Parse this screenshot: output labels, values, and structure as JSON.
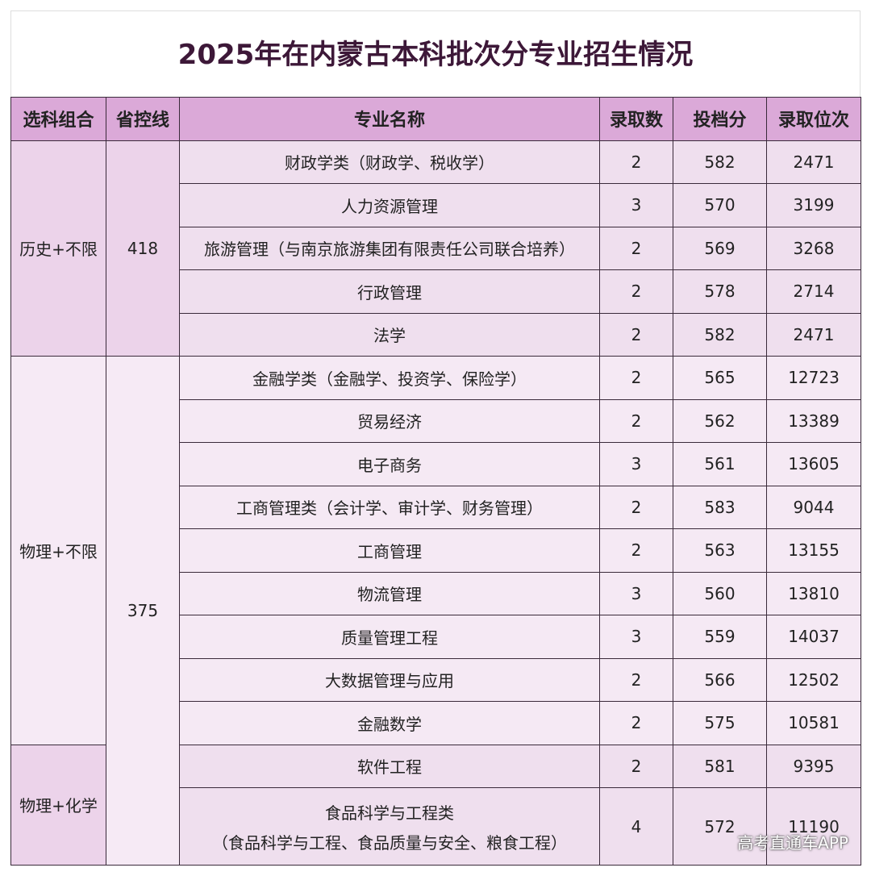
{
  "title": "2025年在内蒙古本科批次分专业招生情况",
  "table": {
    "headers": [
      "选科组合",
      "省控线",
      "专业名称",
      "录取数",
      "投档分",
      "录取位次"
    ],
    "sections": [
      {
        "control_line": 418,
        "groups": [
          {
            "subject": "历史+不限",
            "rows": [
              {
                "major": "财政学类（财政学、税收学）",
                "count": 2,
                "score": 582,
                "rank": 2471
              },
              {
                "major": "人力资源管理",
                "count": 3,
                "score": 570,
                "rank": 3199
              },
              {
                "major": "旅游管理（与南京旅游集团有限责任公司联合培养）",
                "count": 2,
                "score": 569,
                "rank": 3268
              },
              {
                "major": "行政管理",
                "count": 2,
                "score": 578,
                "rank": 2714
              },
              {
                "major": "法学",
                "count": 2,
                "score": 582,
                "rank": 2471
              }
            ]
          }
        ]
      },
      {
        "control_line": 375,
        "groups": [
          {
            "subject": "物理+不限",
            "rows": [
              {
                "major": "金融学类（金融学、投资学、保险学）",
                "count": 2,
                "score": 565,
                "rank": 12723
              },
              {
                "major": "贸易经济",
                "count": 2,
                "score": 562,
                "rank": 13389
              },
              {
                "major": "电子商务",
                "count": 3,
                "score": 561,
                "rank": 13605
              },
              {
                "major": "工商管理类（会计学、审计学、财务管理）",
                "count": 2,
                "score": 583,
                "rank": 9044
              },
              {
                "major": "工商管理",
                "count": 2,
                "score": 563,
                "rank": 13155
              },
              {
                "major": "物流管理",
                "count": 3,
                "score": 560,
                "rank": 13810
              },
              {
                "major": "质量管理工程",
                "count": 3,
                "score": 559,
                "rank": 14037
              },
              {
                "major": "大数据管理与应用",
                "count": 2,
                "score": 566,
                "rank": 12502
              },
              {
                "major": "金融数学",
                "count": 2,
                "score": 575,
                "rank": 10581
              }
            ]
          },
          {
            "subject": "物理+化学",
            "rows": [
              {
                "major": "软件工程",
                "count": 2,
                "score": 581,
                "rank": 9395
              },
              {
                "major": "食品科学与工程类",
                "detail": "（食品科学与工程、食品质量与安全、粮食工程）",
                "count": 4,
                "score": 572,
                "rank": 11190
              }
            ]
          }
        ]
      }
    ]
  },
  "watermark": "高考直通车APP"
}
